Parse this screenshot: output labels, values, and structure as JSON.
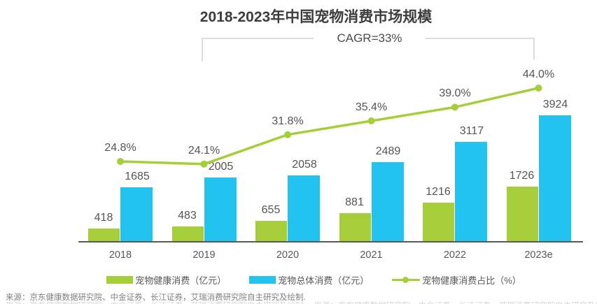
{
  "title": "2018-2023年中国宠物消费市场规模",
  "annotation": {
    "cagr": "CAGR=33%"
  },
  "chart_data": {
    "type": "bar",
    "subtype": "grouped-bar-with-line",
    "title": "2018-2023年中国宠物消费市场规模",
    "annotation": "CAGR=33%",
    "categories": [
      "2018",
      "2019",
      "2020",
      "2021",
      "2022",
      "2023e"
    ],
    "series": [
      {
        "name": "宠物健康消费（亿元）",
        "type": "bar",
        "color": "#a6ce38",
        "values": [
          418,
          483,
          655,
          881,
          1216,
          1726
        ]
      },
      {
        "name": "宠物总体消费（亿元）",
        "type": "bar",
        "color": "#23c3f0",
        "values": [
          1685,
          2005,
          2058,
          2489,
          3117,
          3924
        ]
      },
      {
        "name": "宠物健康消费占比（%）",
        "type": "line",
        "color": "#a6ce38",
        "values": [
          24.8,
          24.1,
          31.8,
          35.4,
          39.0,
          44.0
        ],
        "value_labels": [
          "24.8%",
          "24.1%",
          "31.8%",
          "35.4%",
          "39.0%",
          "44.0%"
        ]
      }
    ],
    "legend_position": "bottom",
    "grid": false,
    "y_axis_visible": false,
    "x_axis_line": true
  },
  "source_note": "来源：京东健康数据研究院、中金证券、长江证券，艾瑞消费研究院自主研究及绘制.",
  "colors": {
    "bar_green": "#a6ce38",
    "bar_blue": "#23c3f0",
    "line_green": "#a6ce38",
    "axis": "#595959",
    "title_text": "#3d3d3d",
    "label_text": "#555555",
    "bracket": "#dcdcdc",
    "source_text": "#808080"
  }
}
